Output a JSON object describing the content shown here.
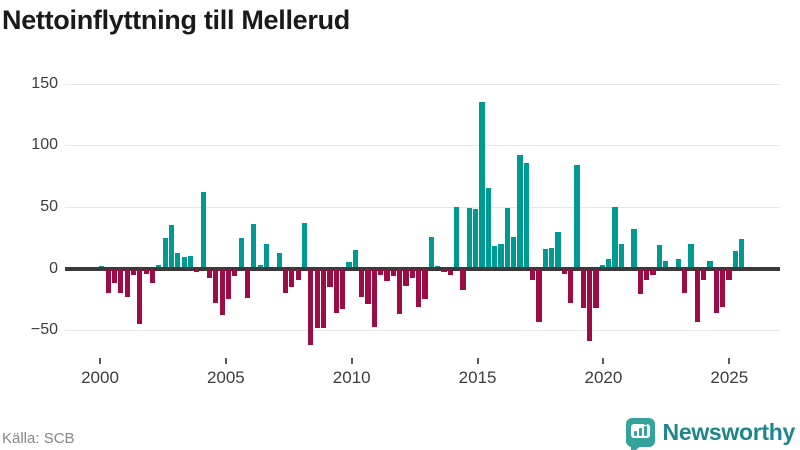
{
  "title": "Nettoinflyttning till Mellerud",
  "source_label": "Källa: SCB",
  "brand": {
    "name": "Newsworthy",
    "icon": "bar-chart-pin-icon",
    "badge_color": "#35a29c",
    "text_color": "#1f868b"
  },
  "colors": {
    "positive": "#009a95",
    "negative": "#9e0c45",
    "zero_line": "#3a3a3a",
    "grid": "#e7e7e7",
    "axis_text": "#3d3d3d",
    "title_text": "#1a1a1a",
    "source_text": "#878787"
  },
  "y_axis": {
    "ticks": [
      150,
      100,
      50,
      0,
      -50
    ],
    "range": [
      -75,
      160
    ]
  },
  "x_axis": {
    "ticks": [
      2000,
      2005,
      2010,
      2015,
      2020,
      2025
    ]
  },
  "chart_data": {
    "type": "bar",
    "title": "Nettoinflyttning till Mellerud",
    "xlabel": "",
    "ylabel": "",
    "ylim": [
      -75,
      160
    ],
    "grid": true,
    "legend": "none",
    "frequency": "quarterly",
    "quarters": [
      "2000Q1",
      "2000Q2",
      "2000Q3",
      "2000Q4",
      "2001Q1",
      "2001Q2",
      "2001Q3",
      "2001Q4",
      "2002Q1",
      "2002Q2",
      "2002Q3",
      "2002Q4",
      "2003Q1",
      "2003Q2",
      "2003Q3",
      "2003Q4",
      "2004Q1",
      "2004Q2",
      "2004Q3",
      "2004Q4",
      "2005Q1",
      "2005Q2",
      "2005Q3",
      "2005Q4",
      "2006Q1",
      "2006Q2",
      "2006Q3",
      "2006Q4",
      "2007Q1",
      "2007Q2",
      "2007Q3",
      "2007Q4",
      "2008Q1",
      "2008Q2",
      "2008Q3",
      "2008Q4",
      "2009Q1",
      "2009Q2",
      "2009Q3",
      "2009Q4",
      "2010Q1",
      "2010Q2",
      "2010Q3",
      "2010Q4",
      "2011Q1",
      "2011Q2",
      "2011Q3",
      "2011Q4",
      "2012Q1",
      "2012Q2",
      "2012Q3",
      "2012Q4",
      "2013Q1",
      "2013Q2",
      "2013Q3",
      "2013Q4",
      "2014Q1",
      "2014Q2",
      "2014Q3",
      "2014Q4",
      "2015Q1",
      "2015Q2",
      "2015Q3",
      "2015Q4",
      "2016Q1",
      "2016Q2",
      "2016Q3",
      "2016Q4",
      "2017Q1",
      "2017Q2",
      "2017Q3",
      "2017Q4",
      "2018Q1",
      "2018Q2",
      "2018Q3",
      "2018Q4",
      "2019Q1",
      "2019Q2",
      "2019Q3",
      "2019Q4",
      "2020Q1",
      "2020Q2",
      "2020Q3",
      "2020Q4",
      "2021Q1",
      "2021Q2",
      "2021Q3",
      "2021Q4",
      "2022Q1",
      "2022Q2",
      "2022Q3",
      "2022Q4",
      "2023Q1",
      "2023Q2",
      "2023Q3",
      "2023Q4",
      "2024Q1",
      "2024Q2",
      "2024Q3",
      "2024Q4",
      "2025Q1",
      "2025Q2"
    ],
    "values": [
      2,
      -20,
      -12,
      -20,
      -23,
      -5,
      -45,
      -4,
      -12,
      3,
      25,
      35,
      13,
      9,
      10,
      -3,
      62,
      -8,
      -28,
      -38,
      -25,
      -6,
      25,
      -24,
      36,
      3,
      20,
      0,
      13,
      -20,
      -15,
      -9,
      37,
      -62,
      -48,
      -48,
      -15,
      -36,
      -33,
      5,
      15,
      -23,
      -29,
      -47,
      -5,
      -10,
      -6,
      -37,
      -14,
      -8,
      -31,
      -25,
      26,
      2,
      -3,
      -5,
      50,
      -17,
      49,
      48,
      135,
      65,
      18,
      20,
      49,
      26,
      92,
      86,
      -9,
      -43,
      16,
      17,
      30,
      -4,
      -28,
      84,
      -32,
      -59,
      -32,
      3,
      8,
      50,
      20,
      0,
      32,
      -21,
      -9,
      -5,
      19,
      6,
      0,
      8,
      -20,
      20,
      -43,
      -9,
      6,
      -36,
      -31,
      -9,
      14,
      24
    ]
  }
}
